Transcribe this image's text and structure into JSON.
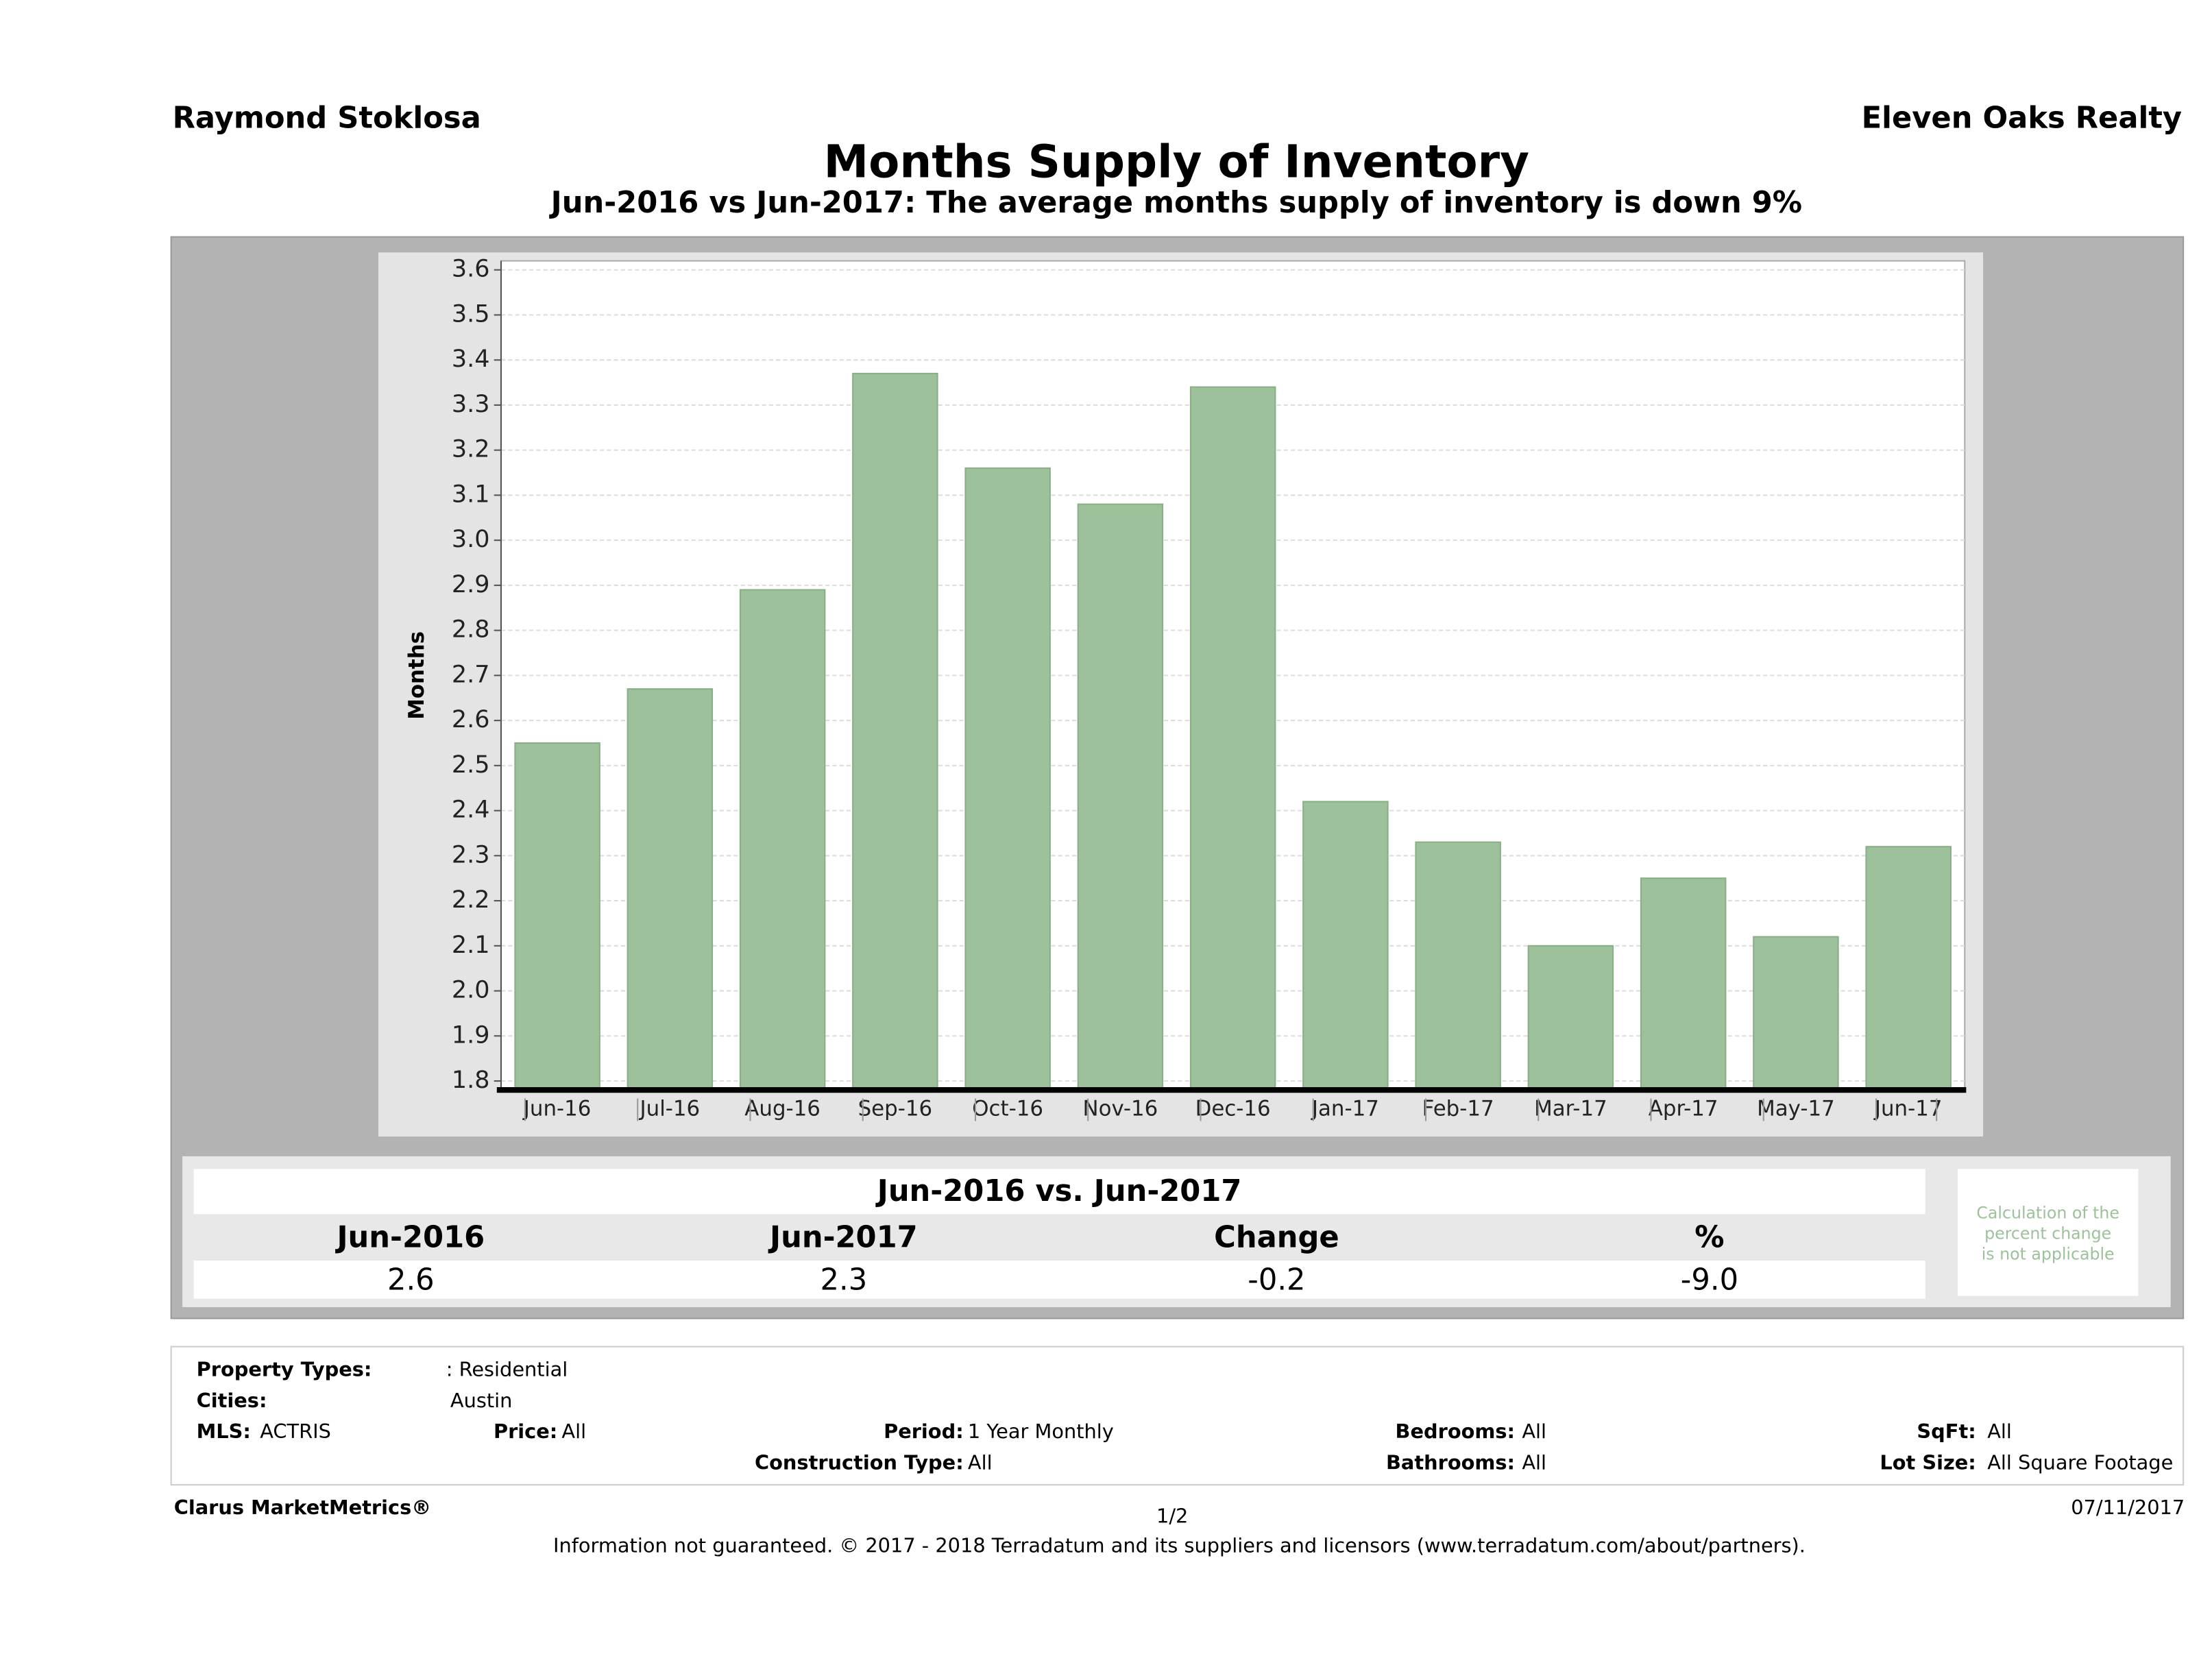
{
  "header": {
    "left": "Raymond Stoklosa",
    "right": "Eleven Oaks Realty"
  },
  "chart_data": {
    "type": "bar",
    "title": "Months Supply of Inventory",
    "subtitle": "Jun-2016 vs Jun-2017: The average months supply of inventory is down 9%",
    "y_label": "Months",
    "categories": [
      "Jun-16",
      "Jul-16",
      "Aug-16",
      "Sep-16",
      "Oct-16",
      "Nov-16",
      "Dec-16",
      "Jan-17",
      "Feb-17",
      "Mar-17",
      "Apr-17",
      "May-17",
      "Jun-17"
    ],
    "values": [
      2.55,
      2.67,
      2.89,
      3.37,
      3.16,
      3.08,
      3.34,
      2.42,
      2.33,
      2.1,
      2.25,
      2.12,
      2.32
    ],
    "color": "#9dc19a",
    "ylim": [
      1.78,
      3.62
    ],
    "yticks": [
      1.8,
      1.9,
      {
        "value": 2,
        "label": "2.0"
      },
      2.1,
      2.2,
      2.3,
      2.4,
      2.5,
      2.6,
      2.7,
      2.8,
      2.9,
      {
        "value": 3,
        "label": "3.0"
      },
      3.1,
      3.2,
      3.3,
      3.4,
      3.5,
      3.6
    ],
    "grid": true
  },
  "summary": {
    "title": "Jun-2016 vs. Jun-2017",
    "columns": [
      "Jun-2016",
      "Jun-2017",
      "Change",
      "%"
    ],
    "values": [
      "2.6",
      "2.3",
      "-0.2",
      "-9.0"
    ],
    "note": [
      "Calculation of the",
      "percent change",
      "is not applicable"
    ]
  },
  "filters": {
    "property_types": {
      "label": "Property Types:",
      "value": ": Residential"
    },
    "cities": {
      "label": "Cities:",
      "value": "Austin"
    },
    "mls": {
      "label": "MLS:",
      "value": "ACTRIS"
    },
    "price": {
      "label": "Price:",
      "value": "All"
    },
    "period": {
      "label": "Period:",
      "value": "1 Year Monthly"
    },
    "bedrooms": {
      "label": "Bedrooms:",
      "value": "All"
    },
    "sqft": {
      "label": "SqFt:",
      "value": "All"
    },
    "construction": {
      "label": "Construction Type:",
      "value": "All"
    },
    "bathrooms": {
      "label": "Bathrooms:",
      "value": "All"
    },
    "lot_size": {
      "label": "Lot Size:",
      "value": "All Square Footage"
    }
  },
  "footer": {
    "brand": "Clarus MarketMetrics®",
    "page": "1/2",
    "date": "07/11/2017",
    "disclaimer": "Information not guaranteed. © 2017 - 2018 Terradatum and its suppliers and licensors (www.terradatum.com/about/partners)."
  }
}
